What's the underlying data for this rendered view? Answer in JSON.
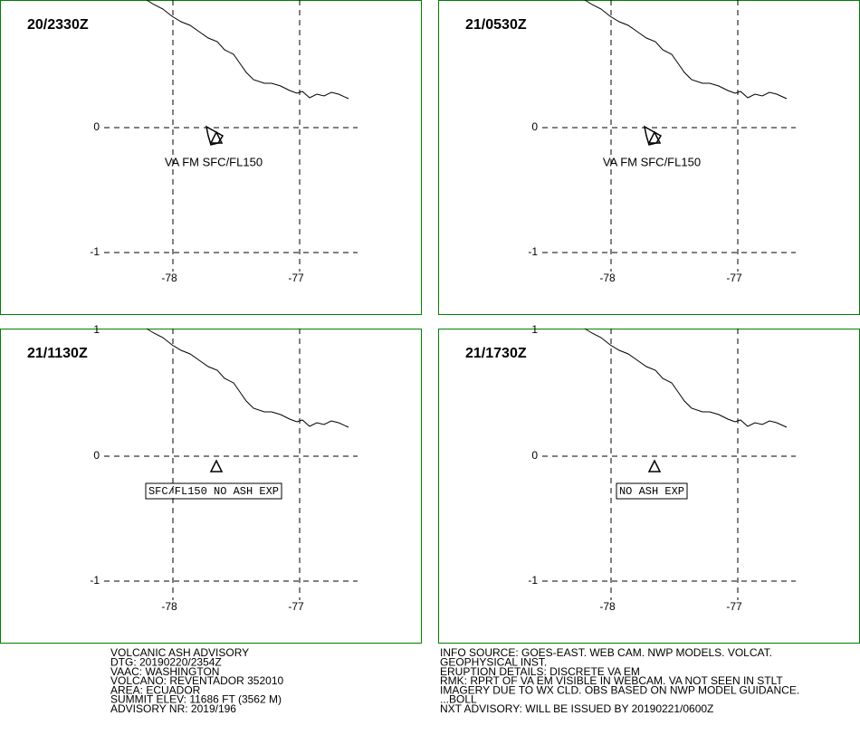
{
  "panels": [
    {
      "time": "20/2330Z",
      "annotation": "VA FM SFC/FL150"
    },
    {
      "time": "21/0530Z",
      "annotation": "VA FM SFC/FL150"
    },
    {
      "time": "21/1130Z",
      "boxed_annotation": "SFC/FL150 NO ASH EXP"
    },
    {
      "time": "21/1730Z",
      "boxed_annotation": "NO ASH EXP"
    }
  ],
  "axes": {
    "lat_labels": [
      "1",
      "0",
      "-1"
    ],
    "lon_labels": [
      "-78",
      "-77"
    ]
  },
  "footer": {
    "left": [
      "VOLCANIC ASH ADVISORY",
      "DTG: 20190220/2354Z",
      "VAAC: WASHINGTON",
      "VOLCANO: REVENTADOR 352010",
      "AREA: ECUADOR",
      "SUMMIT ELEV: 11686 FT (3562 M)",
      "ADVISORY NR: 2019/196"
    ],
    "right": [
      "INFO SOURCE: GOES-EAST. WEB CAM. NWP MODELS. VOLCAT.",
      "GEOPHYSICAL INST.",
      "ERUPTION DETAILS: DISCRETE VA EM",
      "RMK: RPRT OF VA EM VISIBLE IN WEBCAM. VA NOT SEEN IN STLT",
      "IMAGERY DUE TO WX CLD. OBS BASED ON NWP MODEL GUIDANCE.",
      "...BOLL",
      "NXT ADVISORY: WILL BE ISSUED BY 20190221/0600Z"
    ]
  }
}
